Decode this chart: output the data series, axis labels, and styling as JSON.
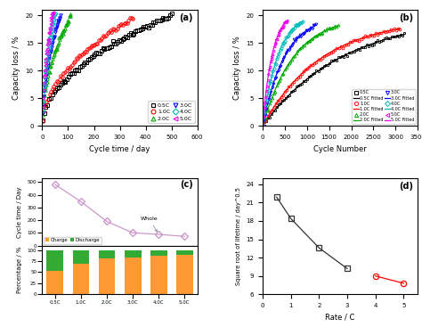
{
  "panel_a": {
    "title": "(a)",
    "xlabel": "Cycle time / day",
    "ylabel": "Capacity loss / %",
    "xlim": [
      0,
      600
    ],
    "ylim": [
      0,
      21
    ],
    "yticks": [
      0,
      5,
      10,
      15,
      20
    ],
    "xticks": [
      0,
      100,
      200,
      300,
      400,
      500,
      600
    ],
    "series": [
      {
        "label": "0.5C",
        "color": "#000000",
        "marker": "s",
        "rate": 0.5,
        "max_day": 500,
        "max_loss": 20.0,
        "n_pts": 80
      },
      {
        "label": "1.0C",
        "color": "#ff0000",
        "marker": "o",
        "rate": 1.0,
        "max_day": 350,
        "max_loss": 19.5,
        "n_pts": 65
      },
      {
        "label": "2.0C",
        "color": "#00aa00",
        "marker": "^",
        "rate": 2.0,
        "max_day": 110,
        "max_loss": 20.0,
        "n_pts": 45
      },
      {
        "label": "3.0C",
        "color": "#0000ff",
        "marker": "v",
        "rate": 3.0,
        "max_day": 70,
        "max_loss": 20.0,
        "n_pts": 35
      },
      {
        "label": "4.0C",
        "color": "#00bbbb",
        "marker": "D",
        "rate": 4.0,
        "max_day": 50,
        "max_loss": 20.5,
        "n_pts": 30
      },
      {
        "label": "5.0C",
        "color": "#ee00ee",
        "marker": "<",
        "rate": 5.0,
        "max_day": 40,
        "max_loss": 20.8,
        "n_pts": 28
      }
    ],
    "legend": {
      "entries": [
        [
          "0.5C",
          "1.0C"
        ],
        [
          "2.0C",
          "3.0C"
        ],
        [
          "4.0C",
          "5.0C"
        ]
      ]
    }
  },
  "panel_b": {
    "title": "(b)",
    "xlabel": "Cycle Number",
    "ylabel": "Capacity loss / %",
    "xlim": [
      0,
      3500
    ],
    "ylim": [
      0,
      21
    ],
    "yticks": [
      0,
      5,
      10,
      15,
      20
    ],
    "xticks": [
      0,
      500,
      1000,
      1500,
      2000,
      2500,
      3000,
      3500
    ],
    "series": [
      {
        "label": "0.5C",
        "color": "#000000",
        "marker": "s",
        "max_cycle": 3200,
        "max_loss": 20.0,
        "k": 0.00055,
        "n_pts": 80
      },
      {
        "label": "1.0C",
        "color": "#ff0000",
        "marker": "o",
        "max_cycle": 3100,
        "max_loss": 19.5,
        "k": 0.00075,
        "n_pts": 75
      },
      {
        "label": "2.0C",
        "color": "#00aa00",
        "marker": "^",
        "max_cycle": 1700,
        "max_loss": 20.0,
        "k": 0.0014,
        "n_pts": 55
      },
      {
        "label": "3.0C",
        "color": "#0000ff",
        "marker": "v",
        "max_cycle": 1200,
        "max_loss": 20.0,
        "k": 0.002,
        "n_pts": 45
      },
      {
        "label": "4.0C",
        "color": "#00bbbb",
        "marker": "D",
        "max_cycle": 900,
        "max_loss": 20.5,
        "k": 0.0028,
        "n_pts": 40
      },
      {
        "label": "5.0C",
        "color": "#ee00ee",
        "marker": "<",
        "max_cycle": 550,
        "max_loss": 20.8,
        "k": 0.0045,
        "n_pts": 35
      }
    ]
  },
  "panel_c": {
    "title": "(c)",
    "rates": [
      "0.5C",
      "1.0C",
      "2.0C",
      "3.0C",
      "4.0C",
      "5.0C"
    ],
    "whole_days": [
      480,
      345,
      190,
      100,
      88,
      72
    ],
    "charge_pct": [
      52,
      68,
      80,
      83,
      87,
      90
    ],
    "discharge_pct": [
      48,
      32,
      20,
      17,
      13,
      10
    ],
    "charge_color": "#ff9933",
    "discharge_color": "#33aa33",
    "line_color": "#cc99cc",
    "ylabel_top": "Cycle time / Day",
    "ylabel_bot": "Percentage / %",
    "yticks_top": [
      0,
      100,
      200,
      300,
      400,
      500
    ],
    "yticks_bot": [
      0,
      25,
      50,
      75,
      100
    ]
  },
  "panel_d": {
    "title": "(d)",
    "xlabel": "Rate / C",
    "ylabel": "Square root of lifetime / day^0.5",
    "rates_black": [
      0.5,
      1.0,
      2.0,
      3.0
    ],
    "vals_black": [
      21.9,
      18.4,
      13.6,
      10.2
    ],
    "rates_red": [
      4.0,
      5.0
    ],
    "vals_red": [
      9.0,
      7.8
    ],
    "xlim": [
      0,
      5.5
    ],
    "ylim": [
      6,
      25
    ],
    "yticks": [
      6,
      9,
      12,
      15,
      18,
      21,
      24
    ],
    "xticks": [
      0,
      1,
      2,
      3,
      4,
      5
    ]
  }
}
